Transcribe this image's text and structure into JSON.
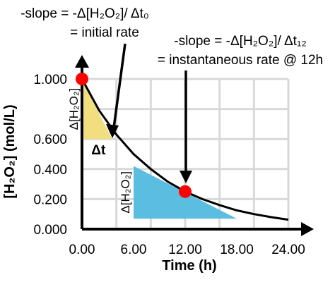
{
  "chart_data": {
    "type": "line",
    "xlabel": "Time (h)",
    "ylabel": "[H₂O₂] (mol/L)",
    "xlim": [
      0,
      24
    ],
    "ylim": [
      0,
      1.0
    ],
    "x_ticks": [
      "0.00",
      "6.00",
      "12.00",
      "18.00",
      "24.00"
    ],
    "y_ticks": [
      "0.000",
      "0.200",
      "0.400",
      "0.600",
      "1.000"
    ],
    "grid": true,
    "x": [
      0,
      2,
      4,
      6,
      8,
      10,
      12,
      14,
      16,
      18,
      20,
      22,
      24
    ],
    "values": [
      1.0,
      0.79,
      0.63,
      0.5,
      0.4,
      0.315,
      0.25,
      0.2,
      0.16,
      0.125,
      0.1,
      0.08,
      0.063
    ],
    "points": [
      {
        "x": 0,
        "y": 1.0
      },
      {
        "x": 12,
        "y": 0.25
      }
    ],
    "tangents": [
      {
        "x0": 0,
        "y0": 1.0,
        "x1": 3.5,
        "y1": 0.6,
        "color": "#f0de80",
        "vlabel": "Δ[H₂O₂]",
        "hlabel": "Δt"
      },
      {
        "x0": 6,
        "y0": 0.42,
        "x1": 18,
        "y1": 0.07,
        "color": "#5bbde0",
        "vlabel": "Δ[H₂O₂]"
      }
    ],
    "annotations": [
      {
        "line1": "-slope = -Δ[H₂O₂]/ Δt₀",
        "line2": "= initial rate"
      },
      {
        "line1": "-slope = -Δ[H₂O₂]/ Δt₁₂",
        "line2": "= instantaneous rate @ 12h"
      }
    ]
  }
}
